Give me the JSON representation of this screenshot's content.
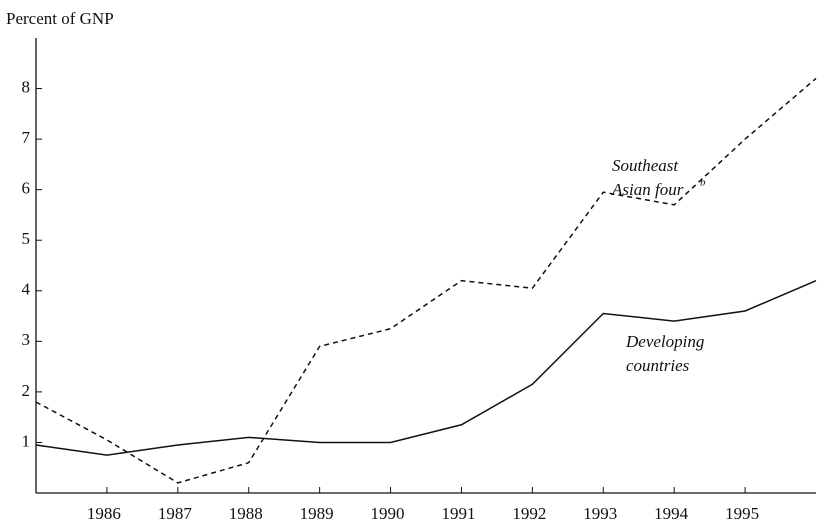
{
  "chart_data": {
    "type": "line",
    "y_label": "Percent of GNP",
    "x": [
      1985,
      1986,
      1987,
      1988,
      1989,
      1990,
      1991,
      1992,
      1993,
      1994,
      1995,
      1996
    ],
    "series": [
      {
        "name": [
          "Southeast",
          "Asian four"
        ],
        "note": "b",
        "color": "#111",
        "dash": true,
        "values": [
          1.8,
          1.05,
          0.2,
          0.6,
          2.9,
          3.25,
          4.2,
          4.05,
          5.95,
          5.7,
          7.0,
          8.2
        ]
      },
      {
        "name": [
          "Developing",
          "countries"
        ],
        "color": "#111",
        "dash": false,
        "values": [
          0.95,
          0.75,
          0.95,
          1.1,
          1.0,
          1.0,
          1.35,
          2.15,
          3.55,
          3.4,
          3.6,
          4.2
        ]
      }
    ],
    "xlim": [
      1985,
      1996
    ],
    "xticks": [
      1986,
      1987,
      1988,
      1989,
      1990,
      1991,
      1992,
      1993,
      1994,
      1995
    ],
    "ylim": [
      0,
      9
    ],
    "yticks": [
      1,
      2,
      3,
      4,
      5,
      6,
      7,
      8
    ],
    "grid": false
  }
}
